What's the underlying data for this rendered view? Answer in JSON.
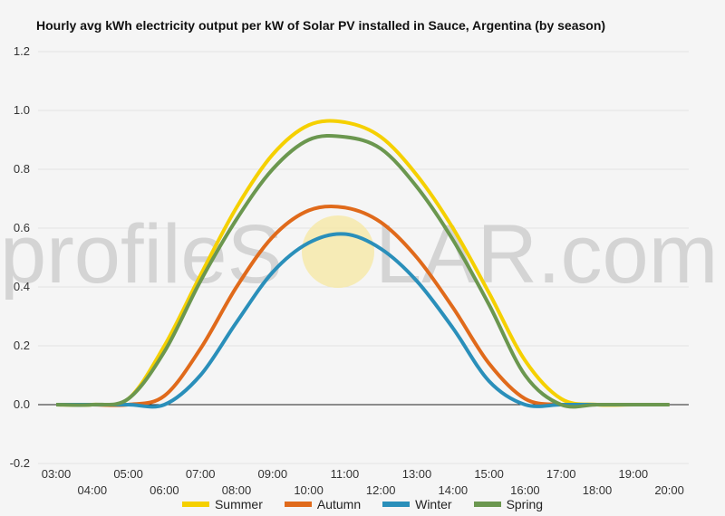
{
  "watermark": {
    "text_left": "profileS",
    "text_right": "LAR.com",
    "sun_color": "#f6e9a6"
  },
  "chart_data": {
    "type": "line",
    "title": "Hourly avg kWh electricity output per kW of Solar PV installed in Sauce, Argentina (by season)",
    "xlabel": "",
    "ylabel": "",
    "x": [
      "03:00",
      "04:00",
      "05:00",
      "06:00",
      "07:00",
      "08:00",
      "09:00",
      "10:00",
      "11:00",
      "12:00",
      "13:00",
      "14:00",
      "15:00",
      "16:00",
      "17:00",
      "18:00",
      "19:00",
      "20:00"
    ],
    "ylim": [
      -0.2,
      1.2
    ],
    "yticks": [
      "1.2",
      "1.0",
      "0.8",
      "0.6",
      "0.4",
      "0.2",
      "0.0",
      "-0.2"
    ],
    "grid": true,
    "legend_position": "bottom",
    "series": [
      {
        "name": "Summer",
        "color": "#f5d000",
        "values": [
          0.0,
          0.0,
          0.02,
          0.2,
          0.44,
          0.67,
          0.85,
          0.95,
          0.96,
          0.91,
          0.78,
          0.6,
          0.38,
          0.15,
          0.02,
          0.0,
          0.0,
          0.0
        ]
      },
      {
        "name": "Autumn",
        "color": "#e06a1b",
        "values": [
          0.0,
          0.0,
          0.0,
          0.03,
          0.19,
          0.4,
          0.57,
          0.66,
          0.67,
          0.62,
          0.5,
          0.33,
          0.14,
          0.02,
          0.0,
          0.0,
          0.0,
          0.0
        ]
      },
      {
        "name": "Winter",
        "color": "#2a8fba",
        "values": [
          0.0,
          0.0,
          0.0,
          0.0,
          0.1,
          0.28,
          0.45,
          0.55,
          0.58,
          0.53,
          0.42,
          0.26,
          0.08,
          0.0,
          0.0,
          0.0,
          0.0,
          0.0
        ]
      },
      {
        "name": "Spring",
        "color": "#6b974f",
        "values": [
          0.0,
          0.0,
          0.02,
          0.18,
          0.42,
          0.63,
          0.8,
          0.9,
          0.91,
          0.87,
          0.74,
          0.56,
          0.34,
          0.1,
          0.0,
          0.0,
          0.0,
          0.0
        ]
      }
    ]
  }
}
